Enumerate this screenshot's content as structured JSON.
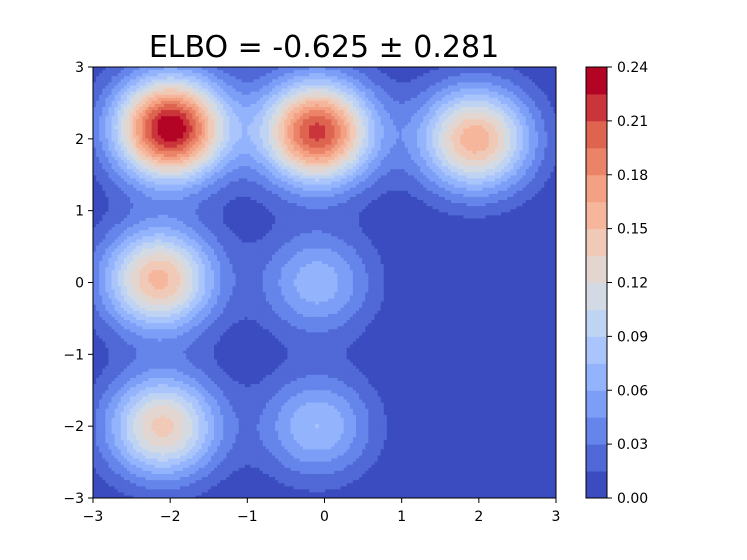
{
  "chart_data": {
    "type": "contourf",
    "title": "ELBO = -0.625 ± 0.281",
    "xlabel": "",
    "ylabel": "",
    "xlim": [
      -3,
      3
    ],
    "ylim": [
      -3,
      3
    ],
    "x_ticks": [
      -3,
      -2,
      -1,
      0,
      1,
      2,
      3
    ],
    "y_ticks": [
      -3,
      -2,
      -1,
      0,
      1,
      2,
      3
    ],
    "x_tick_labels": [
      "−3",
      "−2",
      "−1",
      "0",
      "1",
      "2",
      "3"
    ],
    "y_tick_labels": [
      "−3",
      "−2",
      "−1",
      "0",
      "1",
      "2",
      "3"
    ],
    "grid": false,
    "colormap": "coolwarm",
    "levels": [
      0.0,
      0.015,
      0.03,
      0.045,
      0.06,
      0.075,
      0.09,
      0.105,
      0.12,
      0.135,
      0.15,
      0.165,
      0.18,
      0.195,
      0.21,
      0.225,
      0.24
    ],
    "colorbar_ticks": [
      0.0,
      0.03,
      0.06,
      0.09,
      0.12,
      0.15,
      0.18,
      0.21,
      0.24
    ],
    "colorbar_tick_labels": [
      "0.00",
      "0.03",
      "0.06",
      "0.09",
      "0.12",
      "0.15",
      "0.18",
      "0.21",
      "0.24"
    ],
    "components": [
      {
        "x": -2.0,
        "y": 2.15,
        "peak": 0.24
      },
      {
        "x": -0.1,
        "y": 2.1,
        "peak": 0.215
      },
      {
        "x": 1.95,
        "y": 2.0,
        "peak": 0.16
      },
      {
        "x": -2.15,
        "y": 0.05,
        "peak": 0.155
      },
      {
        "x": -0.1,
        "y": 0.0,
        "peak": 0.07
      },
      {
        "x": -2.1,
        "y": -2.0,
        "peak": 0.14
      },
      {
        "x": -0.1,
        "y": -2.0,
        "peak": 0.075
      }
    ],
    "component_sigma": 0.5
  }
}
